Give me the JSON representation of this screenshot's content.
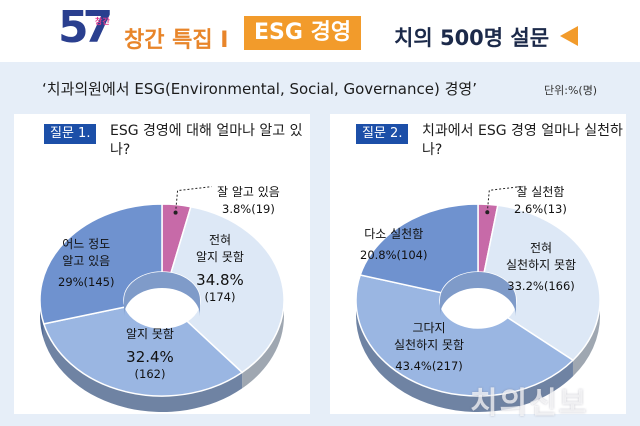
{
  "header": {
    "logo_number": "57",
    "logo_tag": "창간",
    "feature": "창간 특집 Ⅰ",
    "esg_box": "ESG 경영",
    "survey": "치의 500명 설문",
    "subtitle": "‘치과의원에서 ESG(Environmental, Social, Governance) 경영’",
    "unit": "단위:%(명)"
  },
  "watermark": "치의신보",
  "colors": {
    "light": "#dde8f6",
    "mid": "#9ab6e2",
    "dark": "#6f92cf",
    "pink": "#c76aa8",
    "badge": "#1c4fa8",
    "accent": "#f29b2b"
  },
  "chart_data": [
    {
      "type": "pie",
      "question_badge": "질문 1.",
      "question_text": "ESG 경영에 대해 얼마나 알고 있나?",
      "slices": [
        {
          "label": "잘 알고 있음",
          "percent": 3.8,
          "count": 19,
          "color": "#c76aa8"
        },
        {
          "label": "전혀 알지 못함",
          "percent": 34.8,
          "count": 174,
          "color": "#dde8f6"
        },
        {
          "label": "알지 못함",
          "percent": 32.4,
          "count": 162,
          "color": "#9ab6e2"
        },
        {
          "label": "어느 정도 알고 있음",
          "percent": 29,
          "count": 145,
          "color": "#6f92cf"
        }
      ],
      "display": [
        {
          "line1": "잘 알고 있음",
          "line2": "",
          "value": "3.8%(19)"
        },
        {
          "line1": "전혀",
          "line2": "알지 못함",
          "value": "34.8%",
          "value2": "(174)"
        },
        {
          "line1": "알지 못함",
          "line2": "",
          "value": "32.4%",
          "value2": "(162)"
        },
        {
          "line1": "어느 정도",
          "line2": "알고 있음",
          "value": "29%(145)"
        }
      ]
    },
    {
      "type": "pie",
      "question_badge": "질문 2.",
      "question_text": "치과에서 ESG 경영 얼마나 실천하나?",
      "slices": [
        {
          "label": "잘 실천함",
          "percent": 2.6,
          "count": 13,
          "color": "#c76aa8"
        },
        {
          "label": "전혀 실천하지 못함",
          "percent": 33.2,
          "count": 166,
          "color": "#dde8f6"
        },
        {
          "label": "그다지 실천하지 못함",
          "percent": 43.4,
          "count": 217,
          "color": "#9ab6e2"
        },
        {
          "label": "다소 실천함",
          "percent": 20.8,
          "count": 104,
          "color": "#6f92cf"
        }
      ],
      "display": [
        {
          "line1": "잘 실천함",
          "line2": "",
          "value": "2.6%(13)"
        },
        {
          "line1": "전혀",
          "line2": "실천하지 못함",
          "value": "33.2%(166)"
        },
        {
          "line1": "그다지",
          "line2": "실천하지 못함",
          "value": "43.4%(217)"
        },
        {
          "line1": "다소 실천함",
          "line2": "",
          "value": "20.8%(104)"
        }
      ]
    }
  ]
}
